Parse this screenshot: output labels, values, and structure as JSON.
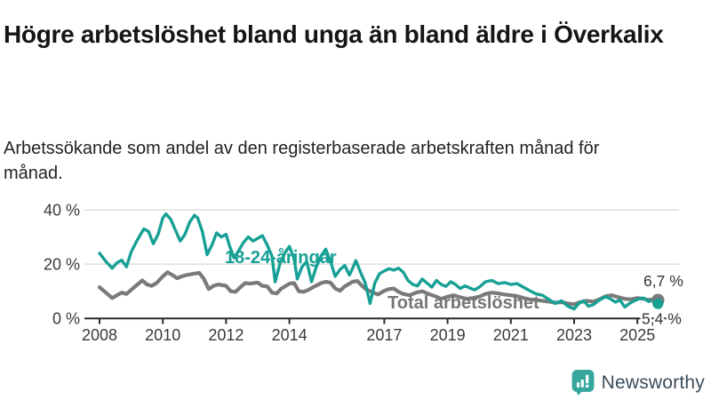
{
  "header": {
    "title": "Högre arbetslöshet bland unga än bland äldre i Överkalix",
    "subtitle": "Arbetssökande som andel av den registerbaserade arbetskraften månad för månad."
  },
  "footer": {
    "brand": "Newsworthy"
  },
  "colors": {
    "youth_line": "#17a095",
    "total_line": "#7a7a7a",
    "total_label": "#767676",
    "axis": "#2b2b2b",
    "grid": "#dedede",
    "tick_text": "#3a3a3a",
    "end_label_text": "#333333",
    "logo_icon": "#35a79c",
    "logo_text": "#3b4d5a"
  },
  "chart_data": {
    "type": "line",
    "title": "Högre arbetslöshet bland unga än bland äldre i Överkalix",
    "subtitle": "Arbetssökande som andel av den registerbaserade arbetskraften månad för månad.",
    "xlabel": "",
    "ylabel": "",
    "grid": "horizontal",
    "legend_position": "inline",
    "ylim": [
      0,
      44
    ],
    "x_range": [
      2008,
      2025.65
    ],
    "grid_values": [
      20,
      40
    ],
    "y_ticks": [
      {
        "value": 40,
        "label": "40 %"
      },
      {
        "value": 20,
        "label": "20 %"
      },
      {
        "value": 0,
        "label": "0 %"
      }
    ],
    "x_ticks": [
      "2008",
      "2010",
      "2012",
      "2014",
      "2017",
      "2019",
      "2021",
      "2023",
      "2025"
    ],
    "x_tick_years": [
      2008,
      2010,
      2012,
      2014,
      2017,
      2019,
      2021,
      2023,
      2025
    ],
    "series": [
      {
        "name": "18-24-åringar",
        "color": "#17a095",
        "end_label": "5,4 %",
        "end_value": 5.4,
        "points": [
          [
            2008.0,
            24
          ],
          [
            2008.2,
            21
          ],
          [
            2008.4,
            18.5
          ],
          [
            2008.55,
            20.5
          ],
          [
            2008.7,
            21.5
          ],
          [
            2008.85,
            19
          ],
          [
            2009.0,
            24.5
          ],
          [
            2009.2,
            29
          ],
          [
            2009.4,
            33
          ],
          [
            2009.55,
            32
          ],
          [
            2009.7,
            27.5
          ],
          [
            2009.85,
            31
          ],
          [
            2010.0,
            37
          ],
          [
            2010.1,
            38.5
          ],
          [
            2010.25,
            36.5
          ],
          [
            2010.4,
            32.5
          ],
          [
            2010.55,
            28.5
          ],
          [
            2010.7,
            31
          ],
          [
            2010.85,
            35.5
          ],
          [
            2011.0,
            38
          ],
          [
            2011.1,
            37
          ],
          [
            2011.25,
            32
          ],
          [
            2011.4,
            23.5
          ],
          [
            2011.55,
            27
          ],
          [
            2011.7,
            31.5
          ],
          [
            2011.85,
            30
          ],
          [
            2012.0,
            31
          ],
          [
            2012.1,
            27
          ],
          [
            2012.25,
            22.3
          ],
          [
            2012.4,
            25
          ],
          [
            2012.55,
            28
          ],
          [
            2012.7,
            30
          ],
          [
            2012.85,
            28.5
          ],
          [
            2013.0,
            29.5
          ],
          [
            2013.15,
            30.5
          ],
          [
            2013.3,
            27
          ],
          [
            2013.45,
            23
          ],
          [
            2013.55,
            13.5
          ],
          [
            2013.7,
            20
          ],
          [
            2013.85,
            24
          ],
          [
            2014.0,
            26.5
          ],
          [
            2014.15,
            22
          ],
          [
            2014.25,
            14.5
          ],
          [
            2014.4,
            19
          ],
          [
            2014.55,
            21
          ],
          [
            2014.7,
            13.5
          ],
          [
            2014.85,
            19
          ],
          [
            2015.0,
            23
          ],
          [
            2015.15,
            25.5
          ],
          [
            2015.3,
            21
          ],
          [
            2015.45,
            15.5
          ],
          [
            2015.6,
            18
          ],
          [
            2015.75,
            19.5
          ],
          [
            2015.9,
            16
          ],
          [
            2016.0,
            18.5
          ],
          [
            2016.1,
            21.3
          ],
          [
            2016.25,
            17
          ],
          [
            2016.4,
            13
          ],
          [
            2016.55,
            5.5
          ],
          [
            2016.7,
            13
          ],
          [
            2016.85,
            16.5
          ],
          [
            2017.0,
            17.5
          ],
          [
            2017.15,
            18.3
          ],
          [
            2017.3,
            17.8
          ],
          [
            2017.45,
            18.5
          ],
          [
            2017.6,
            17
          ],
          [
            2017.75,
            14
          ],
          [
            2017.9,
            12.5
          ],
          [
            2018.05,
            12
          ],
          [
            2018.2,
            14.5
          ],
          [
            2018.35,
            13
          ],
          [
            2018.5,
            11.5
          ],
          [
            2018.65,
            14
          ],
          [
            2018.8,
            12.5
          ],
          [
            2018.95,
            11.8
          ],
          [
            2019.1,
            13.5
          ],
          [
            2019.25,
            12.5
          ],
          [
            2019.4,
            11
          ],
          [
            2019.55,
            12
          ],
          [
            2019.7,
            11.2
          ],
          [
            2019.85,
            10.5
          ],
          [
            2020.0,
            11.5
          ],
          [
            2020.2,
            13.5
          ],
          [
            2020.4,
            14
          ],
          [
            2020.6,
            12.8
          ],
          [
            2020.8,
            13.2
          ],
          [
            2021.0,
            12.5
          ],
          [
            2021.2,
            12.8
          ],
          [
            2021.4,
            11.5
          ],
          [
            2021.6,
            10.2
          ],
          [
            2021.8,
            9
          ],
          [
            2022.0,
            8.5
          ],
          [
            2022.2,
            7
          ],
          [
            2022.4,
            5.5
          ],
          [
            2022.6,
            6.5
          ],
          [
            2022.8,
            4.5
          ],
          [
            2023.0,
            3.5
          ],
          [
            2023.15,
            5.5
          ],
          [
            2023.3,
            6.5
          ],
          [
            2023.45,
            4.5
          ],
          [
            2023.6,
            5
          ],
          [
            2023.8,
            6.8
          ],
          [
            2024.0,
            8
          ],
          [
            2024.15,
            7.2
          ],
          [
            2024.3,
            6
          ],
          [
            2024.45,
            6.8
          ],
          [
            2024.6,
            4.2
          ],
          [
            2024.75,
            5.5
          ],
          [
            2024.9,
            6.5
          ],
          [
            2025.05,
            7.2
          ],
          [
            2025.2,
            7.5
          ],
          [
            2025.35,
            6.2
          ],
          [
            2025.5,
            6.8
          ],
          [
            2025.65,
            5.4
          ]
        ]
      },
      {
        "name": "Total arbetslöshet",
        "color": "#7a7a7a",
        "end_label": "6,7 %",
        "end_value": 6.7,
        "points": [
          [
            2008.0,
            11.5
          ],
          [
            2008.2,
            9.5
          ],
          [
            2008.4,
            7.5
          ],
          [
            2008.55,
            8.5
          ],
          [
            2008.7,
            9.5
          ],
          [
            2008.85,
            9
          ],
          [
            2009.0,
            10.5
          ],
          [
            2009.2,
            12.5
          ],
          [
            2009.35,
            14
          ],
          [
            2009.5,
            12.5
          ],
          [
            2009.65,
            12
          ],
          [
            2009.8,
            13
          ],
          [
            2010.0,
            15.5
          ],
          [
            2010.15,
            17
          ],
          [
            2010.3,
            16
          ],
          [
            2010.45,
            14.8
          ],
          [
            2010.6,
            15.5
          ],
          [
            2010.75,
            16
          ],
          [
            2011.0,
            16.5
          ],
          [
            2011.15,
            16.8
          ],
          [
            2011.3,
            14.5
          ],
          [
            2011.45,
            10.8
          ],
          [
            2011.6,
            12
          ],
          [
            2011.75,
            12.5
          ],
          [
            2012.0,
            12
          ],
          [
            2012.15,
            10
          ],
          [
            2012.3,
            9.8
          ],
          [
            2012.45,
            11.5
          ],
          [
            2012.6,
            13
          ],
          [
            2012.75,
            12.8
          ],
          [
            2013.0,
            13.2
          ],
          [
            2013.15,
            12
          ],
          [
            2013.3,
            11.8
          ],
          [
            2013.45,
            9.5
          ],
          [
            2013.6,
            9.2
          ],
          [
            2013.75,
            11
          ],
          [
            2014.0,
            12.8
          ],
          [
            2014.15,
            13
          ],
          [
            2014.3,
            10
          ],
          [
            2014.45,
            9.8
          ],
          [
            2014.6,
            10.5
          ],
          [
            2014.75,
            11.5
          ],
          [
            2015.0,
            13
          ],
          [
            2015.15,
            13.5
          ],
          [
            2015.3,
            13.2
          ],
          [
            2015.45,
            11
          ],
          [
            2015.6,
            10.2
          ],
          [
            2015.75,
            11.8
          ],
          [
            2016.0,
            13.5
          ],
          [
            2016.15,
            13.8
          ],
          [
            2016.3,
            12
          ],
          [
            2016.45,
            10.5
          ],
          [
            2016.6,
            9.8
          ],
          [
            2016.8,
            8.8
          ],
          [
            2017.0,
            10.2
          ],
          [
            2017.15,
            10.8
          ],
          [
            2017.3,
            11
          ],
          [
            2017.45,
            9.8
          ],
          [
            2017.6,
            9
          ],
          [
            2017.8,
            8.5
          ],
          [
            2018.0,
            9.5
          ],
          [
            2018.2,
            10
          ],
          [
            2018.4,
            9
          ],
          [
            2018.6,
            8.2
          ],
          [
            2018.8,
            7.2
          ],
          [
            2019.0,
            8
          ],
          [
            2019.2,
            8.5
          ],
          [
            2019.4,
            7.8
          ],
          [
            2019.6,
            7.2
          ],
          [
            2019.8,
            7.5
          ],
          [
            2020.0,
            8
          ],
          [
            2020.2,
            9
          ],
          [
            2020.4,
            9.5
          ],
          [
            2020.6,
            9.2
          ],
          [
            2020.8,
            8.8
          ],
          [
            2021.0,
            8.5
          ],
          [
            2021.2,
            8.2
          ],
          [
            2021.4,
            7.5
          ],
          [
            2021.6,
            7
          ],
          [
            2021.8,
            6.8
          ],
          [
            2022.0,
            6.5
          ],
          [
            2022.2,
            6.2
          ],
          [
            2022.4,
            5.8
          ],
          [
            2022.6,
            6
          ],
          [
            2022.8,
            5.5
          ],
          [
            2023.0,
            5.2
          ],
          [
            2023.2,
            6
          ],
          [
            2023.4,
            6.5
          ],
          [
            2023.6,
            6.2
          ],
          [
            2023.8,
            7
          ],
          [
            2024.0,
            8.2
          ],
          [
            2024.2,
            8.5
          ],
          [
            2024.4,
            7.8
          ],
          [
            2024.6,
            7.2
          ],
          [
            2024.8,
            7
          ],
          [
            2025.0,
            7.5
          ],
          [
            2025.2,
            7.2
          ],
          [
            2025.35,
            6.8
          ],
          [
            2025.5,
            7
          ],
          [
            2025.65,
            6.7
          ]
        ]
      }
    ]
  }
}
